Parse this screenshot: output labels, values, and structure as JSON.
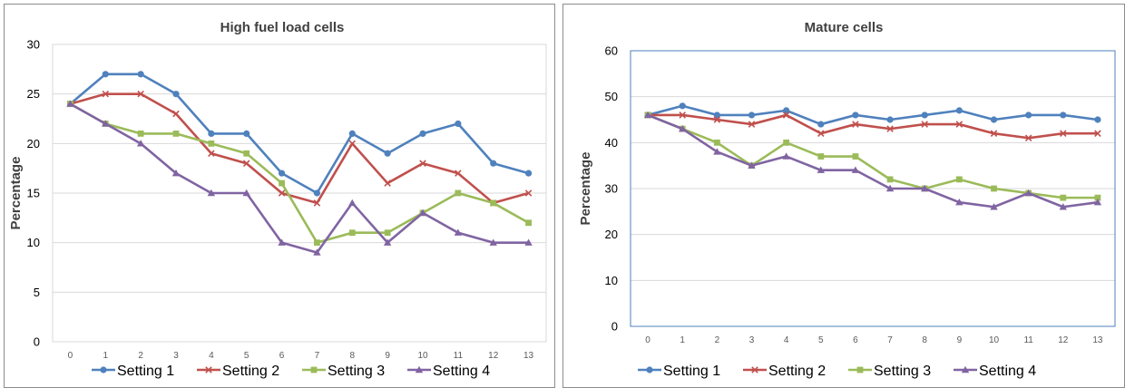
{
  "chart_data": [
    {
      "type": "line",
      "title": "High fuel load cells",
      "xlabel": "",
      "ylabel": "Percentage",
      "x": [
        0,
        1,
        2,
        3,
        4,
        5,
        6,
        7,
        8,
        9,
        10,
        11,
        12,
        13
      ],
      "ylim": [
        0,
        30
      ],
      "yticks": [
        0,
        5,
        10,
        15,
        20,
        25,
        30
      ],
      "grid": "horizontal",
      "legend": "bottom",
      "series": [
        {
          "name": "Setting 1",
          "color": "#4f81bd",
          "marker": "circle",
          "values": [
            24,
            27,
            27,
            25,
            21,
            21,
            17,
            15,
            21,
            19,
            21,
            22,
            18,
            17
          ]
        },
        {
          "name": "Setting 2",
          "color": "#c0504d",
          "marker": "x",
          "values": [
            24,
            25,
            25,
            23,
            19,
            18,
            15,
            14,
            20,
            16,
            18,
            17,
            14,
            15
          ]
        },
        {
          "name": "Setting 3",
          "color": "#9bbb59",
          "marker": "square",
          "values": [
            24,
            22,
            21,
            21,
            20,
            19,
            16,
            10,
            11,
            11,
            13,
            15,
            14,
            12
          ]
        },
        {
          "name": "Setting 4",
          "color": "#8064a2",
          "marker": "triangle",
          "values": [
            24,
            22,
            20,
            17,
            15,
            15,
            10,
            9,
            14,
            10,
            13,
            11,
            10,
            10
          ]
        }
      ]
    },
    {
      "type": "line",
      "title": "Mature cells",
      "xlabel": "",
      "ylabel": "Percentage",
      "x": [
        0,
        1,
        2,
        3,
        4,
        5,
        6,
        7,
        8,
        9,
        10,
        11,
        12,
        13
      ],
      "ylim": [
        0,
        60
      ],
      "yticks": [
        0,
        10,
        20,
        30,
        40,
        50,
        60
      ],
      "grid": "horizontal",
      "legend": "bottom",
      "series": [
        {
          "name": "Setting 1",
          "color": "#4f81bd",
          "marker": "circle",
          "values": [
            46,
            48,
            46,
            46,
            47,
            44,
            46,
            45,
            46,
            47,
            45,
            46,
            46,
            45
          ]
        },
        {
          "name": "Setting 2",
          "color": "#c0504d",
          "marker": "x",
          "values": [
            46,
            46,
            45,
            44,
            46,
            42,
            44,
            43,
            44,
            44,
            42,
            41,
            42,
            42
          ]
        },
        {
          "name": "Setting 3",
          "color": "#9bbb59",
          "marker": "square",
          "values": [
            46,
            43,
            40,
            35,
            40,
            37,
            37,
            32,
            30,
            32,
            30,
            29,
            28,
            28
          ]
        },
        {
          "name": "Setting 4",
          "color": "#8064a2",
          "marker": "triangle",
          "values": [
            46,
            43,
            38,
            35,
            37,
            34,
            34,
            30,
            30,
            27,
            26,
            29,
            26,
            27
          ]
        }
      ]
    }
  ]
}
